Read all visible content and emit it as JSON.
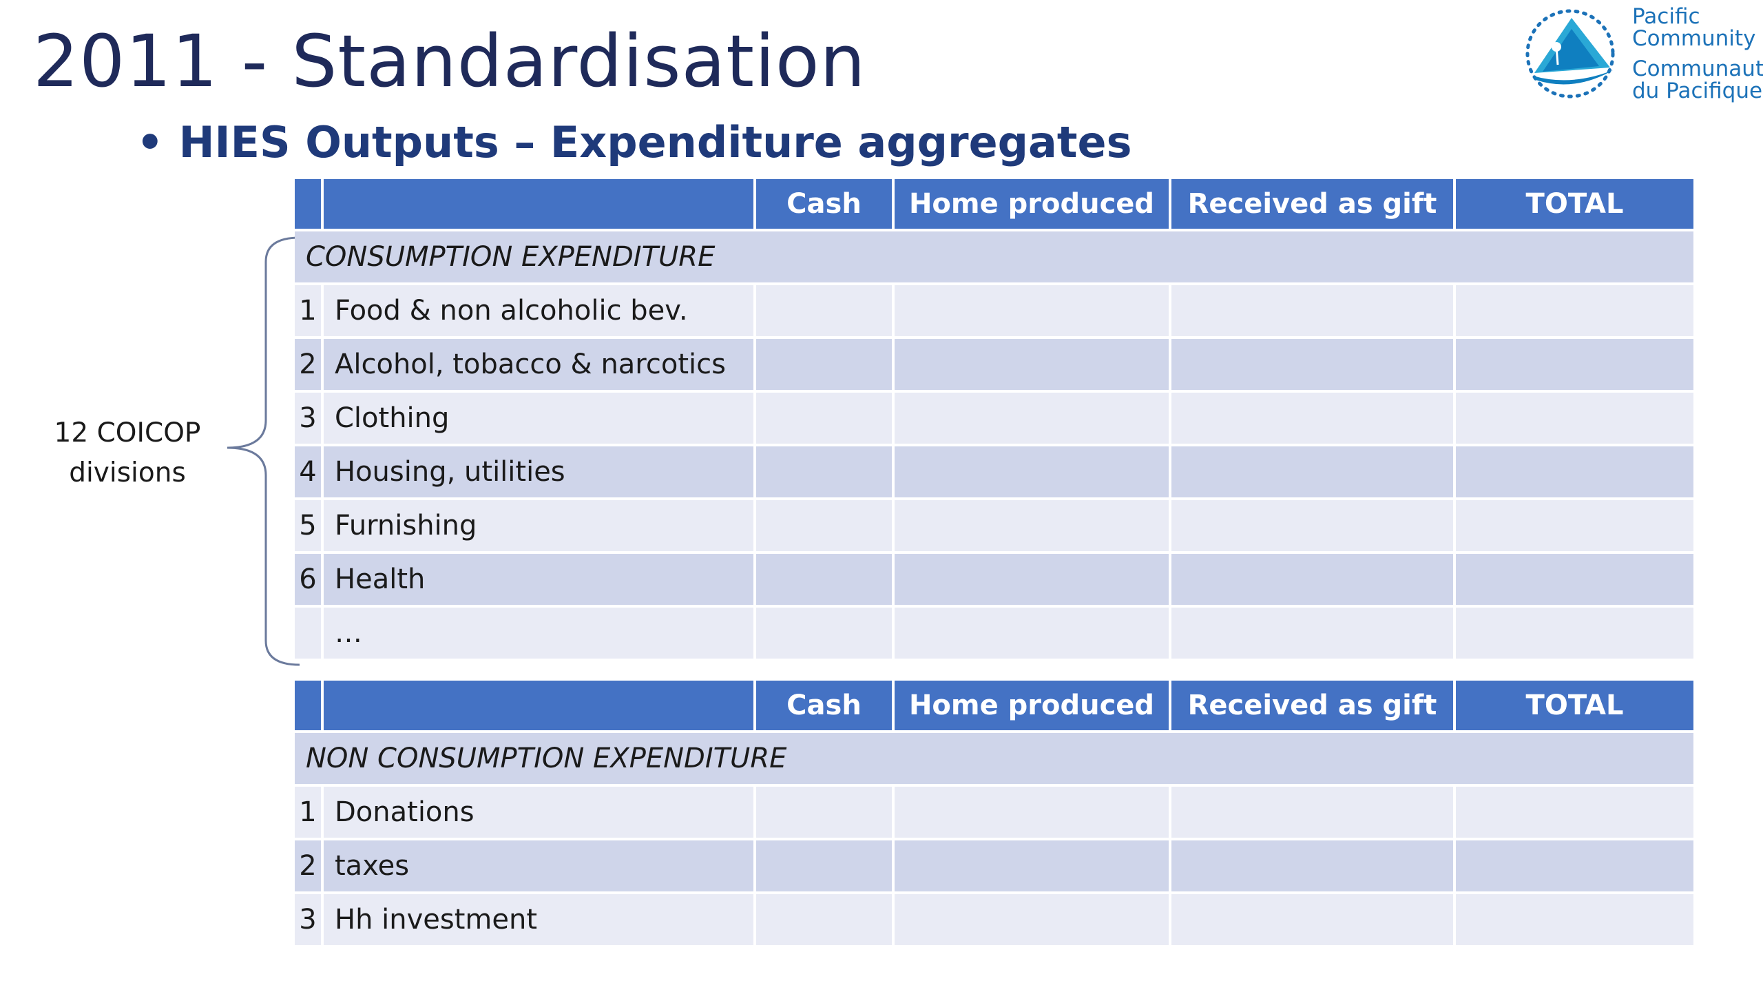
{
  "slide": {
    "title": "2011 - Standardisation",
    "subtitle_bullet": "•",
    "subtitle": "HIES Outputs – Expenditure aggregates"
  },
  "logo": {
    "line1": "Pacific",
    "line2": "Community",
    "line3": "Communauté",
    "line4": "du Pacifique",
    "colors": {
      "primary": "#1c72b8",
      "accent": "#3ab4d8"
    }
  },
  "brace_label": {
    "line1": "12 COICOP",
    "line2": "divisions"
  },
  "columns": [
    "Cash",
    "Home produced",
    "Received as gift",
    "TOTAL"
  ],
  "consumption": {
    "section_label": "CONSUMPTION EXPENDITURE",
    "rows": [
      {
        "num": "1",
        "label": "Food & non alcoholic bev."
      },
      {
        "num": "2",
        "label": "Alcohol, tobacco & narcotics"
      },
      {
        "num": "3",
        "label": "Clothing"
      },
      {
        "num": "4",
        "label": "Housing, utilities"
      },
      {
        "num": "5",
        "label": "Furnishing"
      },
      {
        "num": "6",
        "label": "Health"
      },
      {
        "num": "",
        "label": "…"
      }
    ]
  },
  "non_consumption": {
    "section_label": "NON CONSUMPTION EXPENDITURE",
    "rows": [
      {
        "num": "1",
        "label": "Donations"
      },
      {
        "num": "2",
        "label": "taxes"
      },
      {
        "num": "3",
        "label": "Hh investment"
      }
    ]
  },
  "colors": {
    "header_blue": "#4472c4",
    "row_dark": "#cfd5ea",
    "row_light": "#e9ebf5",
    "title": "#1f2a5a",
    "subtitle": "#1f3a7a"
  }
}
